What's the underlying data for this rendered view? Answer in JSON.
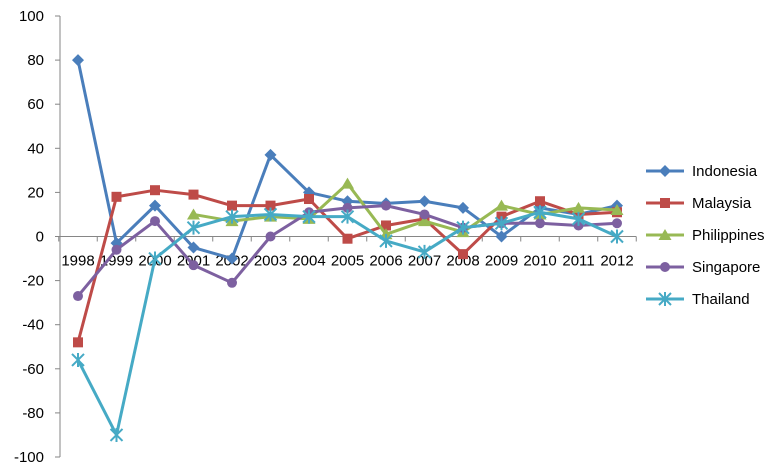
{
  "chart_data": {
    "type": "line",
    "title": "",
    "xlabel": "",
    "ylabel": "",
    "ylim": [
      -100,
      100
    ],
    "y_ticks": [
      100,
      80,
      60,
      40,
      20,
      0,
      -20,
      -40,
      -60,
      -80,
      -100
    ],
    "categories": [
      "1998",
      "1999",
      "2000",
      "2001",
      "2002",
      "2003",
      "2004",
      "2005",
      "2006",
      "2007",
      "2008",
      "2009",
      "2010",
      "2011",
      "2012"
    ],
    "grid": false,
    "legend_position": "right",
    "series": [
      {
        "name": "Indonesia",
        "color": "#4A7EBB",
        "marker": "diamond",
        "values": [
          80,
          -3,
          14,
          -5,
          -10,
          37,
          20,
          16,
          15,
          16,
          13,
          0,
          13,
          10,
          14
        ]
      },
      {
        "name": "Malaysia",
        "color": "#BE4B48",
        "marker": "square",
        "values": [
          -48,
          18,
          21,
          19,
          14,
          14,
          17,
          -1,
          5,
          8,
          -8,
          9,
          16,
          10,
          11
        ]
      },
      {
        "name": "Philippines",
        "color": "#98B954",
        "marker": "triangle",
        "values": [
          null,
          null,
          null,
          10,
          7,
          9,
          8,
          24,
          1,
          7,
          2,
          14,
          10,
          13,
          12
        ]
      },
      {
        "name": "Singapore",
        "color": "#7D60A0",
        "marker": "circle",
        "values": [
          -27,
          -6,
          7,
          -13,
          -21,
          0,
          11,
          13,
          14,
          10,
          4,
          6,
          6,
          5,
          6
        ]
      },
      {
        "name": "Thailand",
        "color": "#46AAC5",
        "marker": "star",
        "values": [
          -56,
          -90,
          -10,
          4,
          9,
          10,
          9,
          9,
          -2,
          -7,
          4,
          6,
          11,
          8,
          0
        ]
      }
    ]
  }
}
